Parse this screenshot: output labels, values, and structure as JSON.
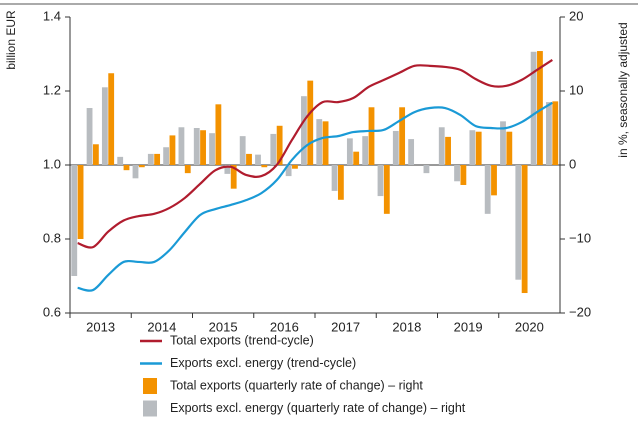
{
  "chart_data": {
    "type": "combo",
    "ylabel": "billion EUR",
    "y2label": "in %, seasonally adjusted",
    "xlim": [
      2013,
      2021
    ],
    "xticks": [
      2013,
      2014,
      2015,
      2016,
      2017,
      2018,
      2019,
      2020
    ],
    "ylim": [
      0.6,
      1.4
    ],
    "yticks": [
      0.6,
      0.8,
      {
        "value": 1.0,
        "label": "1.0"
      },
      1.2,
      1.4
    ],
    "y2lim": [
      -20,
      20
    ],
    "y2ticks": [
      {
        "value": -20,
        "label": "−20"
      },
      {
        "value": -10,
        "label": "−10"
      },
      0,
      10,
      20
    ],
    "x": [
      2013.125,
      2013.375,
      2013.625,
      2013.875,
      2014.125,
      2014.375,
      2014.625,
      2014.875,
      2015.125,
      2015.375,
      2015.625,
      2015.875,
      2016.125,
      2016.375,
      2016.625,
      2016.875,
      2017.125,
      2017.375,
      2017.625,
      2017.875,
      2018.125,
      2018.375,
      2018.625,
      2018.875,
      2019.125,
      2019.375,
      2019.625,
      2019.875,
      2020.125,
      2020.375,
      2020.625,
      2020.875
    ],
    "series": [
      {
        "name": "Total exports (trend-cycle)",
        "type": "line",
        "color": "#b01c2e",
        "values": [
          0.789,
          0.778,
          0.82,
          0.85,
          0.862,
          0.868,
          0.884,
          0.911,
          0.949,
          0.986,
          0.995,
          0.973,
          0.97,
          1.0,
          1.068,
          1.132,
          1.17,
          1.17,
          1.181,
          1.211,
          1.23,
          1.249,
          1.268,
          1.268,
          1.265,
          1.257,
          1.232,
          1.214,
          1.214,
          1.23,
          1.257,
          1.284
        ]
      },
      {
        "name": "Exports excl. energy (trend-cycle)",
        "type": "line",
        "color": "#1a9ad6",
        "values": [
          0.668,
          0.662,
          0.703,
          0.738,
          0.738,
          0.738,
          0.77,
          0.819,
          0.865,
          0.881,
          0.892,
          0.905,
          0.924,
          0.959,
          1.014,
          1.054,
          1.073,
          1.078,
          1.089,
          1.092,
          1.095,
          1.119,
          1.143,
          1.154,
          1.154,
          1.135,
          1.105,
          1.1,
          1.1,
          1.116,
          1.143,
          1.168
        ]
      },
      {
        "name": "Total exports (quarterly rate of change) – right",
        "type": "bar",
        "axis": "y2",
        "color": "#f39200",
        "values": [
          -10,
          2.8,
          12.4,
          -0.7,
          -0.3,
          1.5,
          4,
          -1.1,
          4.7,
          8.2,
          -3.2,
          1.5,
          -0.3,
          5.3,
          -0.5,
          11.4,
          5.9,
          -4.7,
          1.8,
          7.8,
          -6.6,
          7.8,
          0,
          0,
          3.8,
          -2.7,
          4.5,
          -4.1,
          4.5,
          -17.3,
          15.4,
          8.6
        ]
      },
      {
        "name": "Exports excl. energy (quarterly rate of change) – right",
        "type": "bar",
        "axis": "y2",
        "color": "#b8bcc0",
        "values": [
          -15,
          7.7,
          10.5,
          1.1,
          -1.8,
          1.5,
          2.4,
          5.1,
          5,
          4.3,
          -1.2,
          3.9,
          1.4,
          4.2,
          -1.5,
          9.3,
          6.2,
          -3.5,
          3.6,
          3.9,
          -4.2,
          4.6,
          3.5,
          -1.1,
          5.1,
          -2.2,
          4.7,
          -6.6,
          5.9,
          -15.5,
          15.3,
          8.5
        ]
      }
    ]
  }
}
